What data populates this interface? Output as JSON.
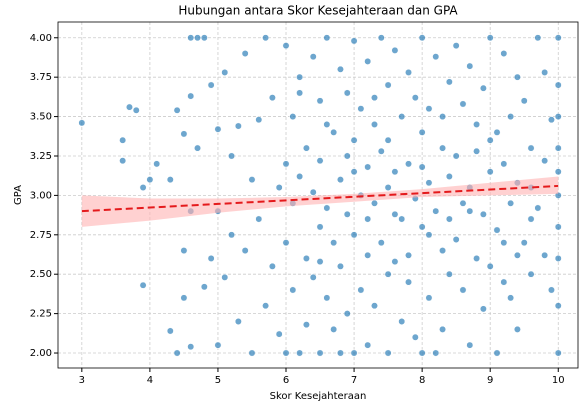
{
  "chart_data": {
    "type": "scatter",
    "title": "Hubungan antara Skor Kesejahteraan dan GPA",
    "x_label": "Skor Kesejahteraan",
    "y_label": "GPA",
    "color": "#1f77b4",
    "grid": true,
    "xlim": [
      2.65,
      10.29
    ],
    "ylim": [
      1.905,
      4.1
    ],
    "xticks": [
      3,
      4,
      5,
      6,
      7,
      8,
      9,
      10
    ],
    "yticks": [
      {
        "value": 2,
        "label": "2.00"
      },
      {
        "value": 2.25,
        "label": "2.25"
      },
      {
        "value": 2.5,
        "label": "2.50"
      },
      {
        "value": 2.75,
        "label": "2.75"
      },
      {
        "value": 3,
        "label": "3.00"
      },
      {
        "value": 3.25,
        "label": "3.25"
      },
      {
        "value": 3.5,
        "label": "3.50"
      },
      {
        "value": 3.75,
        "label": "3.75"
      },
      {
        "value": 4,
        "label": "4.00"
      }
    ],
    "x": [
      3,
      3.6,
      3.6,
      3.7,
      3.8,
      3.9,
      3.9,
      4.0,
      4.1,
      4.3,
      4.3,
      4.4,
      4.4,
      4.5,
      4.5,
      4.6,
      4.6,
      4.6,
      4.7,
      4.8,
      4.5,
      4.6,
      4.7,
      4.8,
      4.9,
      4.9,
      5.0,
      5.0,
      5.0,
      5.1,
      5.1,
      5.2,
      5.2,
      5.3,
      5.3,
      5.4,
      5.4,
      5.5,
      5.5,
      5.6,
      5.6,
      5.7,
      5.7,
      5.8,
      5.8,
      5.9,
      5.9,
      6.0,
      6.0,
      6.0,
      6.0,
      6.1,
      6.1,
      6.1,
      6.2,
      6.2,
      6.2,
      6.3,
      6.3,
      6.3,
      6.4,
      6.4,
      6.4,
      6.5,
      6.5,
      6.5,
      6.5,
      6.6,
      6.6,
      6.6,
      6.7,
      6.7,
      6.7,
      6.8,
      6.8,
      6.8,
      6.8,
      6.9,
      6.9,
      6.9,
      7.0,
      7.0,
      7.0,
      7.0,
      7.1,
      7.1,
      7.1,
      7.2,
      7.2,
      7.2,
      7.2,
      7.3,
      7.3,
      7.3,
      7.4,
      7.4,
      7.4,
      7.5,
      7.5,
      7.5,
      7.5,
      7.6,
      7.6,
      7.6,
      7.7,
      7.7,
      7.7,
      7.8,
      7.8,
      7.8,
      7.9,
      7.9,
      7.9,
      8.0,
      8.0,
      8.0,
      8.0,
      8.1,
      8.1,
      8.1,
      8.2,
      8.2,
      8.2,
      8.3,
      8.3,
      8.3,
      8.4,
      8.4,
      8.4,
      8.5,
      8.5,
      8.5,
      8.6,
      8.6,
      8.6,
      8.7,
      8.7,
      8.7,
      8.8,
      8.8,
      8.9,
      8.9,
      8.9,
      9.0,
      9.0,
      9.0,
      9.1,
      9.1,
      9.1,
      9.2,
      9.2,
      9.2,
      9.3,
      9.3,
      9.3,
      9.4,
      9.4,
      9.4,
      9.5,
      9.5,
      9.6,
      9.6,
      9.6,
      9.7,
      9.7,
      9.8,
      9.8,
      9.8,
      9.9,
      9.9,
      10,
      10,
      10,
      10,
      10,
      10,
      10,
      10,
      10,
      10,
      6.2,
      6.6,
      7.0,
      7.3,
      7.6,
      8.0,
      8.3,
      8.7,
      9.0,
      9.4,
      6.5,
      6.9,
      7.2,
      7.5,
      7.8,
      8.1,
      8.4,
      8.8,
      9.2,
      9.6
    ],
    "values": [
      3.46,
      3.35,
      3.22,
      3.56,
      3.54,
      3.05,
      2.43,
      3.1,
      3.2,
      3.1,
      2.14,
      2.0,
      3.54,
      3.39,
      2.35,
      2.04,
      3.63,
      4.0,
      4.0,
      4.0,
      2.65,
      2.9,
      3.3,
      2.42,
      3.7,
      2.6,
      3.42,
      2.05,
      2.9,
      3.78,
      2.48,
      3.25,
      2.75,
      3.44,
      2.2,
      3.9,
      2.65,
      3.1,
      2.0,
      3.48,
      2.85,
      4.0,
      2.3,
      3.62,
      2.55,
      3.05,
      2.12,
      3.95,
      3.2,
      2.7,
      2.0,
      3.5,
      2.95,
      2.4,
      3.75,
      3.12,
      2.0,
      3.3,
      2.6,
      2.18,
      3.88,
      3.02,
      2.48,
      3.6,
      3.22,
      2.8,
      2.0,
      4.0,
      2.92,
      2.35,
      3.4,
      2.7,
      2.15,
      3.8,
      3.1,
      2.55,
      2.0,
      3.65,
      2.88,
      2.25,
      3.98,
      3.35,
      2.75,
      2.0,
      3.55,
      3.0,
      2.4,
      3.85,
      3.18,
      2.62,
      2.05,
      3.45,
      2.95,
      2.3,
      4.0,
      3.28,
      2.7,
      3.7,
      3.05,
      2.5,
      2.0,
      3.92,
      3.15,
      2.58,
      3.5,
      2.85,
      2.2,
      3.78,
      3.2,
      2.45,
      3.62,
      2.98,
      2.1,
      4.0,
      3.4,
      2.8,
      2.0,
      3.55,
      3.08,
      2.35,
      3.88,
      2.9,
      2.0,
      3.3,
      2.65,
      2.15,
      3.72,
      3.12,
      2.5,
      3.95,
      3.25,
      2.72,
      3.58,
      2.95,
      2.4,
      3.82,
      3.05,
      2.05,
      3.45,
      2.6,
      3.68,
      2.88,
      2.28,
      4.0,
      3.15,
      2.55,
      3.4,
      2.78,
      2.0,
      3.9,
      3.2,
      2.45,
      3.5,
      2.95,
      2.35,
      3.75,
      3.08,
      2.15,
      3.6,
      2.7,
      3.3,
      2.85,
      2.5,
      4.0,
      2.92,
      3.78,
      3.22,
      2.62,
      3.48,
      2.4,
      4.0,
      3.7,
      3.5,
      3.3,
      3.15,
      3.0,
      2.8,
      2.6,
      2.3,
      2.0,
      3.65,
      3.45,
      3.15,
      3.62,
      2.88,
      3.18,
      3.5,
      2.9,
      3.35,
      2.62,
      2.58,
      3.25,
      2.85,
      3.35,
      2.62,
      2.75,
      2.85,
      3.28,
      2.7,
      3.05
    ],
    "trend_line": {
      "x": [
        3,
        10
      ],
      "values": [
        2.9,
        3.06
      ],
      "color": "#e41a1c"
    },
    "confidence_band": {
      "x": [
        3,
        4,
        5,
        6,
        7,
        8,
        9,
        10
      ],
      "lower": [
        2.8,
        2.84,
        2.89,
        2.93,
        2.96,
        2.99,
        3.0,
        3.01
      ],
      "upper": [
        3.0,
        2.98,
        2.98,
        2.99,
        3.01,
        3.04,
        3.08,
        3.12
      ],
      "color": "#ffb3b3"
    }
  }
}
